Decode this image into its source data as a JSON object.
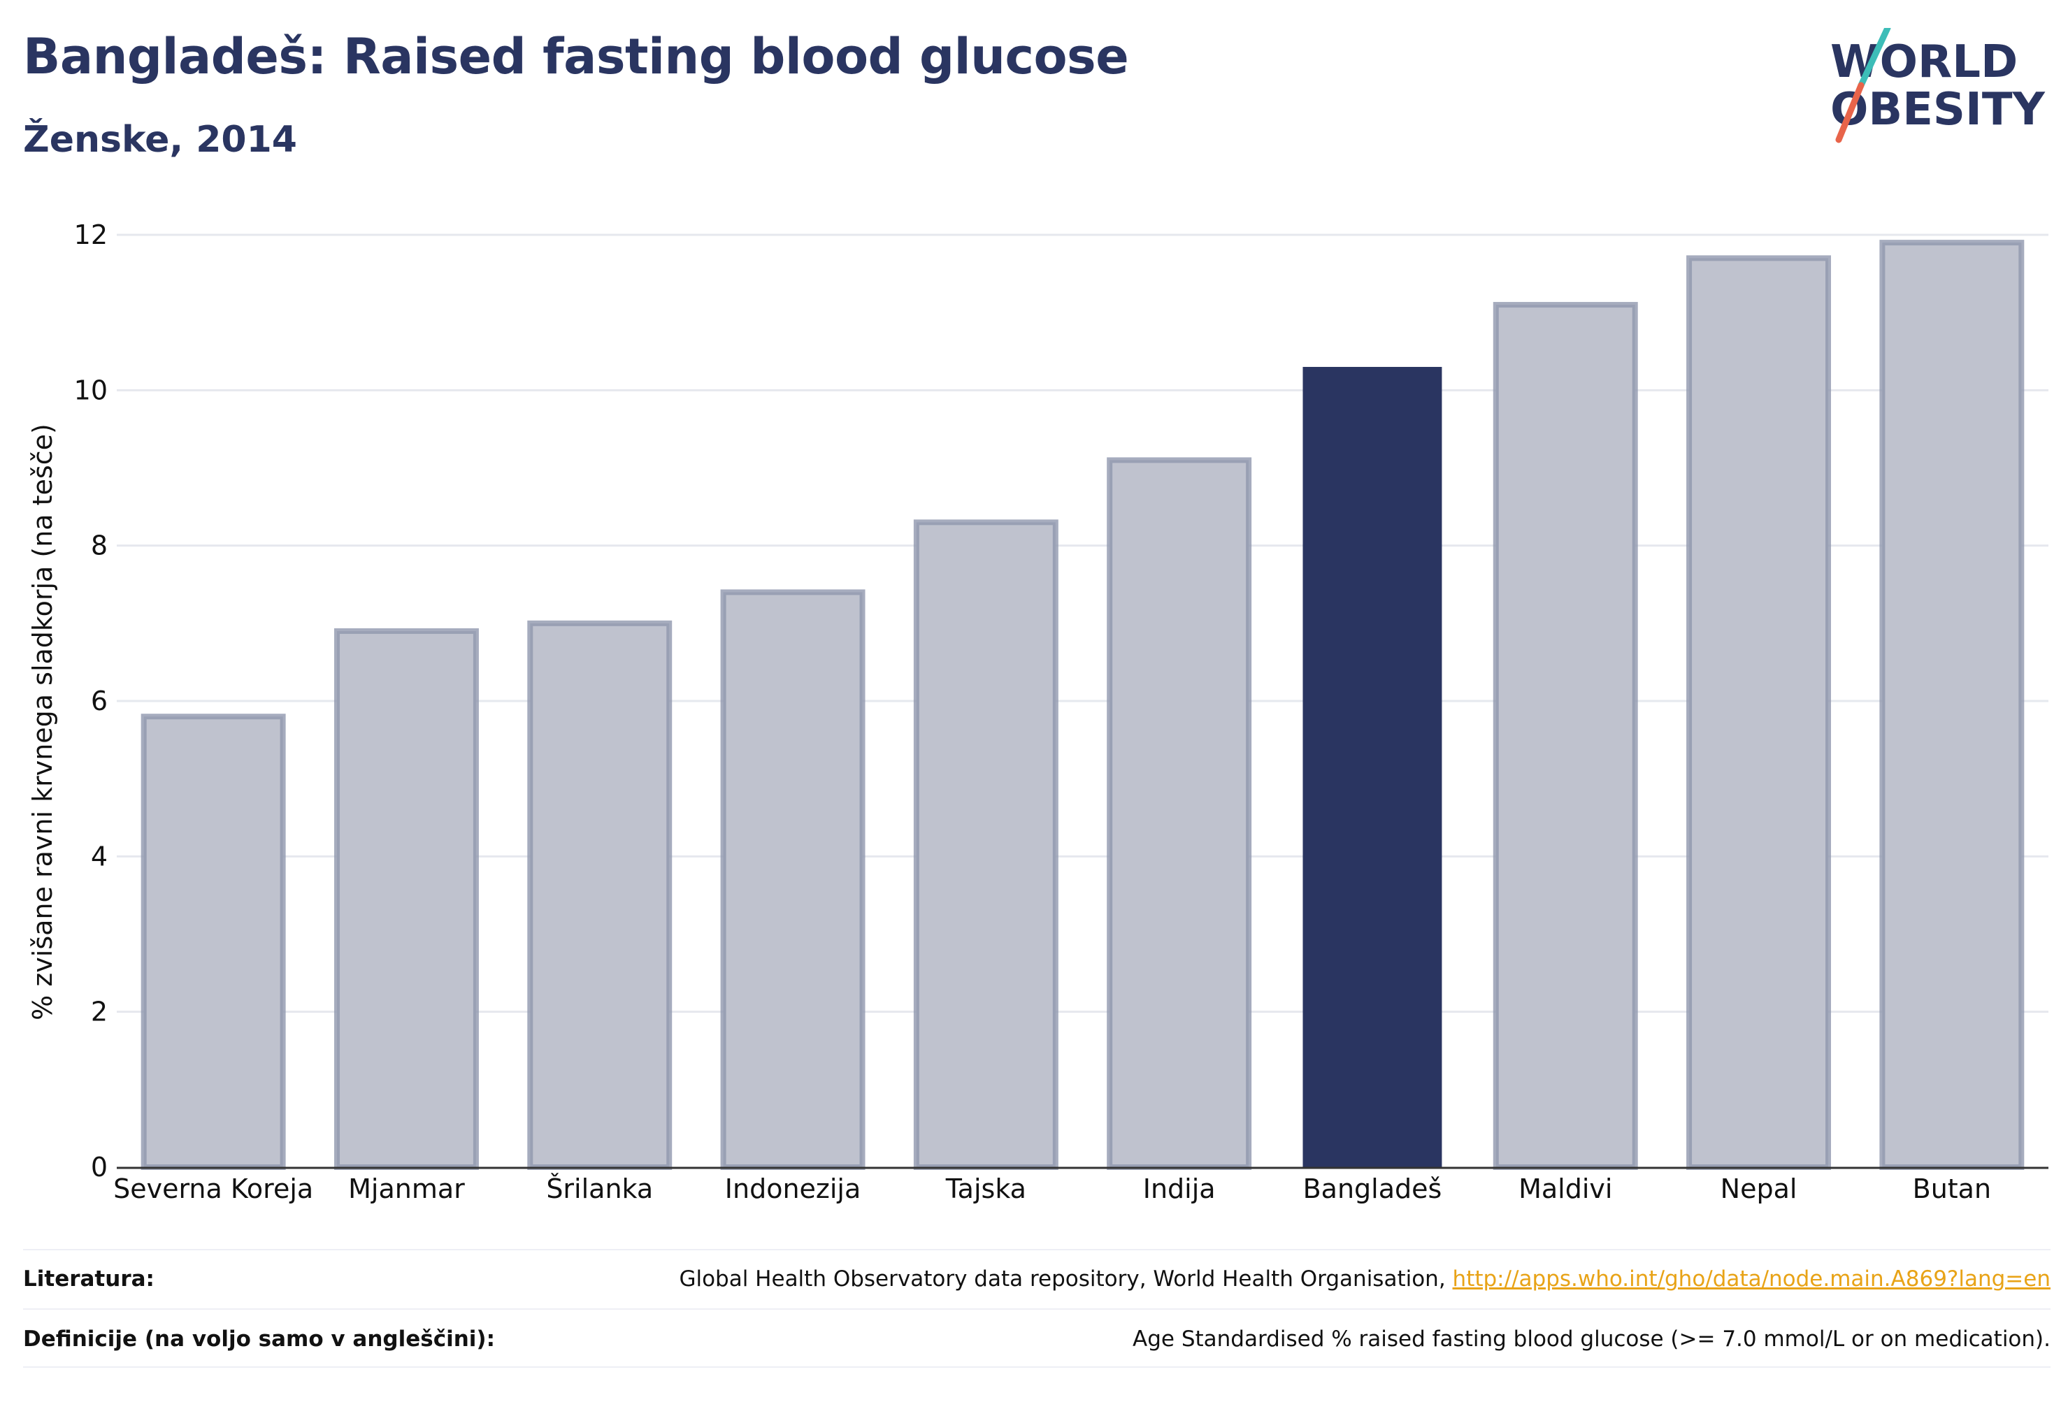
{
  "header": {
    "title": "Bangladeš: Raised fasting blood glucose",
    "subtitle": "Ženske, 2014"
  },
  "logo": {
    "line1": "WORLD",
    "line2": "OBESITY"
  },
  "chart_data": {
    "type": "bar",
    "categories": [
      "Severna Koreja",
      "Mjanmar",
      "Šrilanka",
      "Indonezija",
      "Tajska",
      "Indija",
      "Bangladeš",
      "Maldivi",
      "Nepal",
      "Butan"
    ],
    "values": [
      5.8,
      6.9,
      7.0,
      7.4,
      8.3,
      9.1,
      10.3,
      11.1,
      11.7,
      11.9
    ],
    "highlight": "Bangladeš",
    "ylabel": "% zvišane ravni krvnega sladkorja (na tešče)",
    "xlabel": "",
    "ylim": [
      0,
      12
    ],
    "yticks": [
      0,
      2,
      4,
      6,
      8,
      10,
      12
    ],
    "grid": true,
    "colors": {
      "bar": "#bfc2ce",
      "bar_edge": "#9097ae",
      "highlight": "#2a3561"
    }
  },
  "footer": {
    "sources_label": "Literatura:",
    "sources_text": "Global Health Observatory data repository, World Health Organisation, ",
    "sources_link": "http://apps.who.int/gho/data/node.main.A869?lang=en",
    "definitions_label": "Definicije (na voljo samo v angleščini):",
    "definitions_text": "Age Standardised % raised fasting blood glucose (>= 7.0 mmol/L or on medication)."
  }
}
